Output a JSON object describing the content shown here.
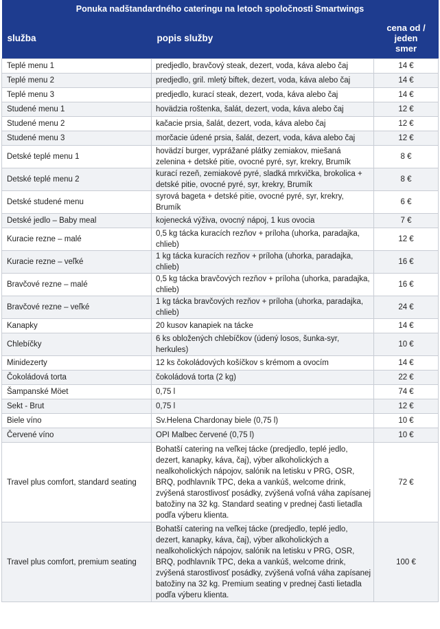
{
  "title": "Ponuka nadštandardného cateringu na letoch spoločnosti Smartwings",
  "columns": {
    "service": "služba",
    "description": "popis služby",
    "price_line1": "cena od /",
    "price_line2": "jeden",
    "price_line3": "smer"
  },
  "rows": [
    {
      "service": "Teplé menu 1",
      "description": "predjedlo, bravčový steak, dezert, voda, káva alebo čaj",
      "price": "14 €"
    },
    {
      "service": "Teplé menu 2",
      "description": "predjedlo, gril. mletý biftek, dezert, voda, káva alebo čaj",
      "price": "14 €"
    },
    {
      "service": "Teplé menu 3",
      "description": "predjedlo, kurací steak, dezert, voda, káva alebo čaj",
      "price": "14 €"
    },
    {
      "service": "Studené menu 1",
      "description": "hovädzia roštenka, šalát, dezert, voda, káva alebo čaj",
      "price": "12 €"
    },
    {
      "service": "Studené menu 2",
      "description": "kačacie prsia, šalát, dezert, voda, káva alebo čaj",
      "price": "12 €"
    },
    {
      "service": "Studené menu 3",
      "description": "morčacie údené prsia, šalát, dezert, voda, káva alebo čaj",
      "price": "12 €"
    },
    {
      "service": "Detské teplé menu 1",
      "description": "hovädzí burger, vyprážané plátky zemiakov, miešaná zelenina + detské pitie, ovocné pyré, syr, krekry, Brumík",
      "price": "8 €"
    },
    {
      "service": "Detské teplé menu 2",
      "description": "kurací rezeň, zemiakové pyré, sladká mrkvička, brokolica + detské pitie, ovocné pyré, syr, krekry, Brumík",
      "price": "8 €"
    },
    {
      "service": "Detské studené menu",
      "description": "syrová bageta + detské pitie, ovocné pyré, syr, krekry, Brumík",
      "price": "6 €"
    },
    {
      "service": "Detské jedlo – Baby meal",
      "description": "kojenecká výživa, ovocný nápoj, 1 kus ovocia",
      "price": "7 €"
    },
    {
      "service": "Kuracie rezne – malé",
      "description": "0,5 kg tácka kuracích rezňov + príloha (uhorka, paradajka, chlieb)",
      "price": "12 €"
    },
    {
      "service": "Kuracie rezne – veľké",
      "description": "1 kg tácka kuracích rezňov + príloha (uhorka, paradajka, chlieb)",
      "price": "16 €"
    },
    {
      "service": "Bravčové rezne – malé",
      "description": "0,5 kg tácka bravčových rezňov + príloha (uhorka, paradajka, chlieb)",
      "price": "16 €"
    },
    {
      "service": "Bravčové rezne – veľké",
      "description": "1 kg tácka bravčových rezňov + príloha (uhorka, paradajka, chlieb)",
      "price": "24 €"
    },
    {
      "service": "Kanapky",
      "description": "20 kusov kanapiek na tácke",
      "price": "14 €"
    },
    {
      "service": "Chlebíčky",
      "description": "6 ks obložených chlebíčkov (údený losos, šunka-syr, herkules)",
      "price": "10 €"
    },
    {
      "service": "Minidezerty",
      "description": "12 ks čokoládových košíčkov s krémom a ovocím",
      "price": "14 €"
    },
    {
      "service": "Čokoládová torta",
      "description": "čokoládová torta (2 kg)",
      "price": "22 €"
    },
    {
      "service": "Šampanské Möet",
      "description": "0,75 l",
      "price": "74 €"
    },
    {
      "service": "Sekt - Brut",
      "description": "0,75 l",
      "price": "12 €"
    },
    {
      "service": "Biele víno",
      "description": "Sv.Helena Chardonay biele (0,75 l)",
      "price": "10 €"
    },
    {
      "service": "Červené víno",
      "description": "OPI Malbec červené (0,75 l)",
      "price": "10 €"
    },
    {
      "service": "Travel plus comfort, standard seating",
      "description": "Bohatší catering na veľkej tácke (predjedlo, teplé jedlo, dezert, kanapky, káva, čaj), výber alkoholických a nealkoholických nápojov, salónik na letisku v PRG, OSR, BRQ, podhlavník TPC, deka a vankúš, welcome drink, zvýšená starostlivosť posádky, zvýšená voľná váha zapísanej batožiny na 32 kg. Standard seating v prednej časti lietadla podľa výberu klienta.",
      "price": "72 €"
    },
    {
      "service": "Travel plus comfort, premium seating",
      "description": "Bohatší catering na veľkej tácke (predjedlo, teplé jedlo, dezert, kanapky, káva, čaj), výber alkoholických a nealkoholických nápojov, salónik na letisku v PRG, OSR, BRQ, podhlavník TPC, deka a vankúš, welcome drink, zvýšená starostlivosť posádky, zvýšená voľná váha zapísanej batožiny na 32 kg. Premium seating v prednej časti lietadla podľa výberu klienta.",
      "price": "100 €"
    }
  ]
}
